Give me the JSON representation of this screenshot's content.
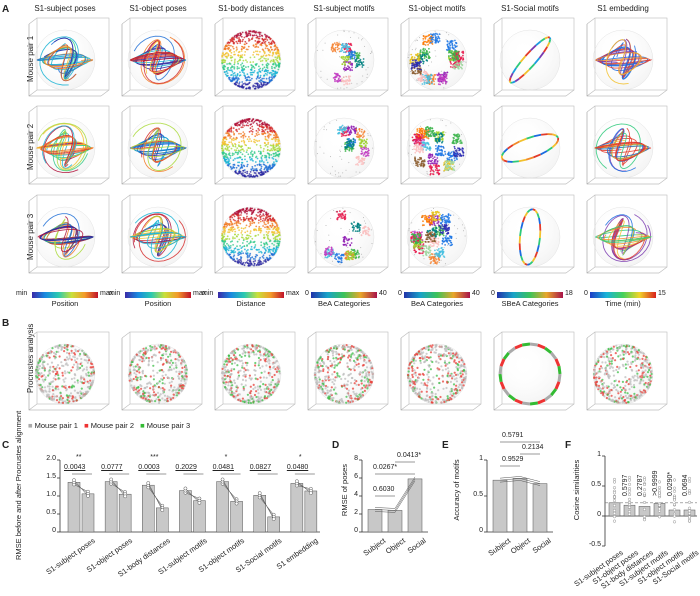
{
  "panels": {
    "A": "A",
    "B": "B",
    "C": "C",
    "D": "D",
    "E": "E",
    "F": "F"
  },
  "panelA": {
    "columns": [
      "S1-subject poses",
      "S1-object poses",
      "S1-body distances",
      "S1-subject motifs",
      "S1-object motifs",
      "S1-Social motifs",
      "S1 embedding"
    ],
    "rows": [
      "Mouse pair 1",
      "Mouse pair 2",
      "Mouse pair 3"
    ],
    "colorbars": [
      {
        "min": "min",
        "max": "max",
        "label": "Position"
      },
      {
        "min": "min",
        "max": "max",
        "label": "Position"
      },
      {
        "min": "min",
        "max": "max",
        "label": "Distance"
      },
      {
        "min": "0",
        "max": "40",
        "label": "BeA Categories"
      },
      {
        "min": "0",
        "max": "40",
        "label": "BeA Categories"
      },
      {
        "min": "0",
        "max": "18",
        "label": "SBeA Categories"
      },
      {
        "min": "0",
        "max": "15",
        "label": "Time (min)"
      }
    ]
  },
  "panelB": {
    "row_label": "Procrustes analysis",
    "legend": [
      "Mouse pair 1",
      "Mouse pair 2",
      "Mouse pair 3"
    ]
  },
  "chart_data": [
    {
      "panel": "C",
      "type": "bar",
      "ylabel": "RMSE before and after Procrustes alignment",
      "ylim": [
        0,
        2
      ],
      "yticks": [
        "0",
        "0.5",
        "1.0",
        "1.5",
        "2.0"
      ],
      "categories": [
        "S1-subject poses",
        "S1-object poses",
        "S1-body distances",
        "S1-subject motifs",
        "S1-object motifs",
        "S1-Social motifs",
        "S1 embedding"
      ],
      "before": [
        1.38,
        1.4,
        1.3,
        1.15,
        1.4,
        1.02,
        1.35
      ],
      "after": [
        1.06,
        1.05,
        0.67,
        0.87,
        0.85,
        0.42,
        1.14
      ],
      "pvalues": [
        "0.0043",
        "0.0777",
        "0.0003",
        "0.2029",
        "0.0481",
        "0.0827",
        "0.0480"
      ],
      "stars": [
        "**",
        "",
        "***",
        "",
        "*",
        "",
        "*"
      ]
    },
    {
      "panel": "D",
      "type": "bar",
      "ylabel": "RMSE of poses",
      "ylim": [
        0,
        8
      ],
      "yticks": [
        "0",
        "2",
        "4",
        "6",
        "8"
      ],
      "categories": [
        "Subject",
        "Object",
        "Social"
      ],
      "values": [
        2.5,
        2.4,
        5.9
      ],
      "comparisons": [
        "0.6030",
        "0.0267*",
        "0.0413*"
      ]
    },
    {
      "panel": "E",
      "type": "bar",
      "ylabel": "Accuracy of motifs",
      "ylim": [
        0,
        1
      ],
      "yticks": [
        "0",
        "0.5",
        "1"
      ],
      "categories": [
        "Subject",
        "Object",
        "Social"
      ],
      "values": [
        0.9,
        0.93,
        0.84
      ],
      "comparisons": [
        "0.9529",
        "0.2134",
        "0.5791"
      ]
    },
    {
      "panel": "F",
      "type": "bar",
      "ylabel": "Cosine similarities",
      "ylim": [
        -0.5,
        1
      ],
      "yticks": [
        "-0.5",
        "0",
        "0.5",
        "1"
      ],
      "categories": [
        "S1-subject poses",
        "S1-object poses",
        "S1-body distances",
        "S1-subject motifs",
        "S1-object motifs",
        "S1-Social motifs"
      ],
      "values": [
        0.22,
        0.18,
        0.16,
        0.21,
        0.1,
        0.1
      ],
      "pvalues": [
        "",
        "0.5797",
        "0.2787",
        ">0.9999",
        "0.0290*",
        "0.0694"
      ]
    }
  ]
}
